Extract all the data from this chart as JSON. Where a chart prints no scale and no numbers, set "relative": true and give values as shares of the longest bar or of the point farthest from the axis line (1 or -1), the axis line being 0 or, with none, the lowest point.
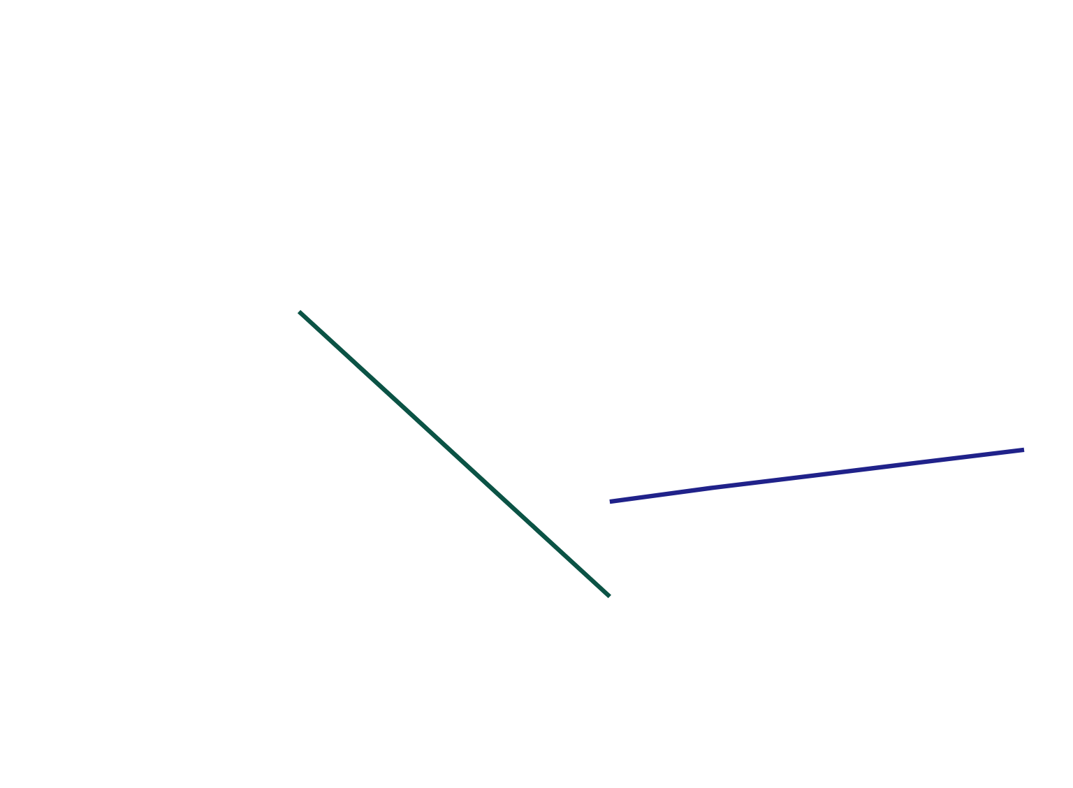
{
  "chart_data": {
    "type": "line",
    "relative": true,
    "categories": [
      null,
      null,
      null,
      null,
      null,
      null,
      null,
      null
    ],
    "series": [
      {
        "color": "#0b5345",
        "values": [
          1,
          0.667,
          0.333,
          0,
          null,
          null,
          null,
          null
        ]
      },
      {
        "color": "#20228a",
        "values": [
          null,
          null,
          null,
          0.333,
          0.382,
          0.426,
          0.471,
          0.515
        ]
      }
    ]
  }
}
